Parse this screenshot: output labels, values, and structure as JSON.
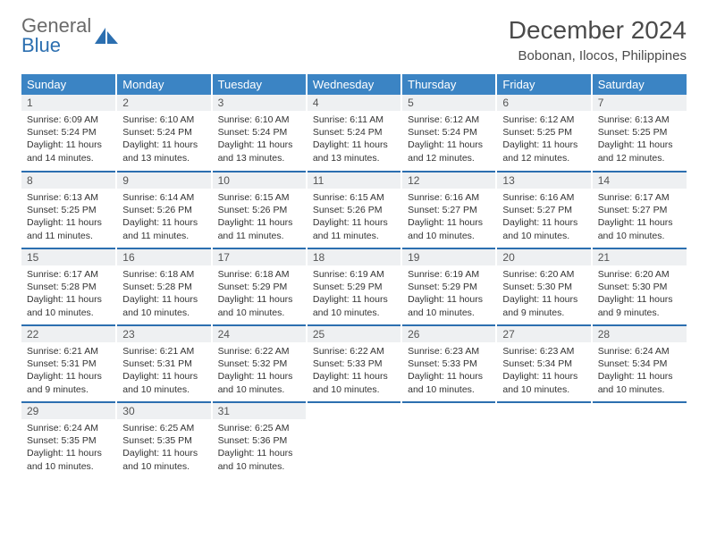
{
  "logo": {
    "text1": "General",
    "text2": "Blue"
  },
  "title": "December 2024",
  "location": "Bobonan, Ilocos, Philippines",
  "colors": {
    "header_bg": "#3b84c4",
    "header_text": "#ffffff",
    "row_sep": "#2c6fb0",
    "daynum_bg": "#eef0f2",
    "logo_gray": "#6a6a6a",
    "logo_blue": "#2c6fb0"
  },
  "weekdays": [
    "Sunday",
    "Monday",
    "Tuesday",
    "Wednesday",
    "Thursday",
    "Friday",
    "Saturday"
  ],
  "weeks": [
    [
      {
        "n": "1",
        "sr": "6:09 AM",
        "ss": "5:24 PM",
        "dh": "11",
        "dm": "14"
      },
      {
        "n": "2",
        "sr": "6:10 AM",
        "ss": "5:24 PM",
        "dh": "11",
        "dm": "13"
      },
      {
        "n": "3",
        "sr": "6:10 AM",
        "ss": "5:24 PM",
        "dh": "11",
        "dm": "13"
      },
      {
        "n": "4",
        "sr": "6:11 AM",
        "ss": "5:24 PM",
        "dh": "11",
        "dm": "13"
      },
      {
        "n": "5",
        "sr": "6:12 AM",
        "ss": "5:24 PM",
        "dh": "11",
        "dm": "12"
      },
      {
        "n": "6",
        "sr": "6:12 AM",
        "ss": "5:25 PM",
        "dh": "11",
        "dm": "12"
      },
      {
        "n": "7",
        "sr": "6:13 AM",
        "ss": "5:25 PM",
        "dh": "11",
        "dm": "12"
      }
    ],
    [
      {
        "n": "8",
        "sr": "6:13 AM",
        "ss": "5:25 PM",
        "dh": "11",
        "dm": "11"
      },
      {
        "n": "9",
        "sr": "6:14 AM",
        "ss": "5:26 PM",
        "dh": "11",
        "dm": "11"
      },
      {
        "n": "10",
        "sr": "6:15 AM",
        "ss": "5:26 PM",
        "dh": "11",
        "dm": "11"
      },
      {
        "n": "11",
        "sr": "6:15 AM",
        "ss": "5:26 PM",
        "dh": "11",
        "dm": "11"
      },
      {
        "n": "12",
        "sr": "6:16 AM",
        "ss": "5:27 PM",
        "dh": "11",
        "dm": "10"
      },
      {
        "n": "13",
        "sr": "6:16 AM",
        "ss": "5:27 PM",
        "dh": "11",
        "dm": "10"
      },
      {
        "n": "14",
        "sr": "6:17 AM",
        "ss": "5:27 PM",
        "dh": "11",
        "dm": "10"
      }
    ],
    [
      {
        "n": "15",
        "sr": "6:17 AM",
        "ss": "5:28 PM",
        "dh": "11",
        "dm": "10"
      },
      {
        "n": "16",
        "sr": "6:18 AM",
        "ss": "5:28 PM",
        "dh": "11",
        "dm": "10"
      },
      {
        "n": "17",
        "sr": "6:18 AM",
        "ss": "5:29 PM",
        "dh": "11",
        "dm": "10"
      },
      {
        "n": "18",
        "sr": "6:19 AM",
        "ss": "5:29 PM",
        "dh": "11",
        "dm": "10"
      },
      {
        "n": "19",
        "sr": "6:19 AM",
        "ss": "5:29 PM",
        "dh": "11",
        "dm": "10"
      },
      {
        "n": "20",
        "sr": "6:20 AM",
        "ss": "5:30 PM",
        "dh": "11",
        "dm": "9"
      },
      {
        "n": "21",
        "sr": "6:20 AM",
        "ss": "5:30 PM",
        "dh": "11",
        "dm": "9"
      }
    ],
    [
      {
        "n": "22",
        "sr": "6:21 AM",
        "ss": "5:31 PM",
        "dh": "11",
        "dm": "9"
      },
      {
        "n": "23",
        "sr": "6:21 AM",
        "ss": "5:31 PM",
        "dh": "11",
        "dm": "10"
      },
      {
        "n": "24",
        "sr": "6:22 AM",
        "ss": "5:32 PM",
        "dh": "11",
        "dm": "10"
      },
      {
        "n": "25",
        "sr": "6:22 AM",
        "ss": "5:33 PM",
        "dh": "11",
        "dm": "10"
      },
      {
        "n": "26",
        "sr": "6:23 AM",
        "ss": "5:33 PM",
        "dh": "11",
        "dm": "10"
      },
      {
        "n": "27",
        "sr": "6:23 AM",
        "ss": "5:34 PM",
        "dh": "11",
        "dm": "10"
      },
      {
        "n": "28",
        "sr": "6:24 AM",
        "ss": "5:34 PM",
        "dh": "11",
        "dm": "10"
      }
    ],
    [
      {
        "n": "29",
        "sr": "6:24 AM",
        "ss": "5:35 PM",
        "dh": "11",
        "dm": "10"
      },
      {
        "n": "30",
        "sr": "6:25 AM",
        "ss": "5:35 PM",
        "dh": "11",
        "dm": "10"
      },
      {
        "n": "31",
        "sr": "6:25 AM",
        "ss": "5:36 PM",
        "dh": "11",
        "dm": "10"
      },
      null,
      null,
      null,
      null
    ]
  ],
  "labels": {
    "sunrise": "Sunrise:",
    "sunset": "Sunset:",
    "daylight_prefix": "Daylight:",
    "hours_word": "hours",
    "and_word": "and",
    "minutes_word": "minutes."
  }
}
